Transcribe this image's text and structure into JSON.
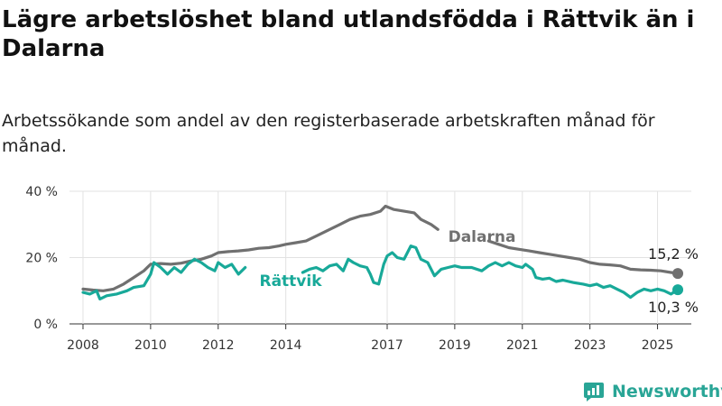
{
  "header": {
    "title": "Lägre arbetslöshet bland utlandsfödda i Rättvik än i Dalarna",
    "subtitle": "Arbetssökande som andel av den registerbaserade arbetskraften månad för månad."
  },
  "brand": {
    "name": "Newsworthy",
    "icon": "newsworthy-logo-icon",
    "color": "#29a596"
  },
  "chart_data": {
    "type": "line",
    "title": "Lägre arbetslöshet bland utlandsfödda i Rättvik än i Dalarna",
    "subtitle": "Arbetssökande som andel av den registerbaserade arbetskraften månad för månad.",
    "xlabel": "",
    "ylabel": "",
    "x_ticks": [
      "2008",
      "2010",
      "2012",
      "2014",
      "2017",
      "2019",
      "2021",
      "2023",
      "2025"
    ],
    "y_ticks": [
      "0 %",
      "20 %",
      "40 %"
    ],
    "xlim": [
      2007.6,
      2026.0
    ],
    "ylim": [
      0,
      40
    ],
    "grid": "horizontal",
    "series": [
      {
        "name": "Dalarna",
        "color": "#707070",
        "end_label": "15,2 %",
        "end_value": 15.2,
        "points": [
          [
            2008.0,
            10.5
          ],
          [
            2008.3,
            10.2
          ],
          [
            2008.6,
            10.0
          ],
          [
            2008.9,
            10.5
          ],
          [
            2009.2,
            12.0
          ],
          [
            2009.5,
            14.0
          ],
          [
            2009.8,
            16.0
          ],
          [
            2010.0,
            18.0
          ],
          [
            2010.3,
            18.2
          ],
          [
            2010.6,
            18.0
          ],
          [
            2010.9,
            18.3
          ],
          [
            2011.2,
            19.0
          ],
          [
            2011.5,
            19.5
          ],
          [
            2011.8,
            20.5
          ],
          [
            2012.0,
            21.5
          ],
          [
            2012.3,
            21.8
          ],
          [
            2012.6,
            22.0
          ],
          [
            2012.9,
            22.3
          ],
          [
            2013.2,
            22.8
          ],
          [
            2013.5,
            23.0
          ],
          [
            2013.8,
            23.5
          ],
          [
            2014.0,
            24.0
          ],
          [
            2014.3,
            24.5
          ],
          [
            2014.6,
            25.0
          ],
          [
            2015.0,
            27.0
          ],
          [
            2015.3,
            28.5
          ],
          [
            2015.6,
            30.0
          ],
          [
            2015.9,
            31.5
          ],
          [
            2016.2,
            32.5
          ],
          [
            2016.5,
            33.0
          ],
          [
            2016.8,
            34.0
          ],
          [
            2016.95,
            35.5
          ],
          [
            2017.2,
            34.5
          ],
          [
            2017.5,
            34.0
          ],
          [
            2017.8,
            33.5
          ],
          [
            2018.0,
            31.5
          ],
          [
            2018.3,
            30.0
          ],
          [
            2018.5,
            28.5
          ],
          [
            2020.0,
            25.0
          ],
          [
            2020.3,
            24.0
          ],
          [
            2020.6,
            23.0
          ],
          [
            2020.9,
            22.5
          ],
          [
            2021.2,
            22.0
          ],
          [
            2021.5,
            21.5
          ],
          [
            2021.8,
            21.0
          ],
          [
            2022.1,
            20.5
          ],
          [
            2022.4,
            20.0
          ],
          [
            2022.7,
            19.5
          ],
          [
            2023.0,
            18.5
          ],
          [
            2023.3,
            18.0
          ],
          [
            2023.6,
            17.8
          ],
          [
            2023.9,
            17.5
          ],
          [
            2024.2,
            16.5
          ],
          [
            2024.5,
            16.3
          ],
          [
            2024.8,
            16.2
          ],
          [
            2025.1,
            16.0
          ],
          [
            2025.4,
            15.5
          ],
          [
            2025.6,
            15.2
          ]
        ]
      },
      {
        "name": "Rättvik",
        "color": "#18a999",
        "end_label": "10,3 %",
        "end_value": 10.3,
        "points": [
          [
            2008.0,
            9.5
          ],
          [
            2008.2,
            9.0
          ],
          [
            2008.4,
            10.0
          ],
          [
            2008.5,
            7.5
          ],
          [
            2008.7,
            8.5
          ],
          [
            2009.0,
            9.0
          ],
          [
            2009.3,
            10.0
          ],
          [
            2009.5,
            11.0
          ],
          [
            2009.8,
            11.5
          ],
          [
            2010.0,
            15.0
          ],
          [
            2010.1,
            18.5
          ],
          [
            2010.3,
            17.0
          ],
          [
            2010.5,
            15.0
          ],
          [
            2010.7,
            17.0
          ],
          [
            2010.9,
            15.5
          ],
          [
            2011.1,
            18.0
          ],
          [
            2011.3,
            19.5
          ],
          [
            2011.5,
            18.5
          ],
          [
            2011.7,
            17.0
          ],
          [
            2011.9,
            16.0
          ],
          [
            2012.0,
            18.5
          ],
          [
            2012.2,
            17.0
          ],
          [
            2012.4,
            18.0
          ],
          [
            2012.6,
            15.0
          ],
          [
            2012.8,
            17.0
          ],
          [
            2014.5,
            15.5
          ],
          [
            2014.7,
            16.5
          ],
          [
            2014.9,
            17.0
          ],
          [
            2015.1,
            16.0
          ],
          [
            2015.3,
            17.5
          ],
          [
            2015.5,
            18.0
          ],
          [
            2015.7,
            16.0
          ],
          [
            2015.85,
            19.5
          ],
          [
            2016.0,
            18.5
          ],
          [
            2016.2,
            17.5
          ],
          [
            2016.4,
            17.0
          ],
          [
            2016.5,
            15.0
          ],
          [
            2016.6,
            12.5
          ],
          [
            2016.75,
            12.0
          ],
          [
            2016.9,
            18.0
          ],
          [
            2017.0,
            20.5
          ],
          [
            2017.15,
            21.5
          ],
          [
            2017.3,
            20.0
          ],
          [
            2017.5,
            19.5
          ],
          [
            2017.7,
            23.5
          ],
          [
            2017.85,
            23.0
          ],
          [
            2018.0,
            19.5
          ],
          [
            2018.2,
            18.5
          ],
          [
            2018.4,
            14.5
          ],
          [
            2018.6,
            16.5
          ],
          [
            2018.8,
            17.0
          ],
          [
            2019.0,
            17.5
          ],
          [
            2019.2,
            17.0
          ],
          [
            2019.5,
            17.0
          ],
          [
            2019.8,
            16.0
          ],
          [
            2020.0,
            17.5
          ],
          [
            2020.2,
            18.5
          ],
          [
            2020.4,
            17.5
          ],
          [
            2020.6,
            18.5
          ],
          [
            2020.8,
            17.5
          ],
          [
            2021.0,
            17.0
          ],
          [
            2021.1,
            18.0
          ],
          [
            2021.3,
            16.5
          ],
          [
            2021.4,
            14.0
          ],
          [
            2021.6,
            13.5
          ],
          [
            2021.8,
            13.8
          ],
          [
            2022.0,
            12.8
          ],
          [
            2022.2,
            13.2
          ],
          [
            2022.5,
            12.5
          ],
          [
            2022.8,
            12.0
          ],
          [
            2023.0,
            11.5
          ],
          [
            2023.2,
            12.0
          ],
          [
            2023.4,
            11.0
          ],
          [
            2023.6,
            11.5
          ],
          [
            2023.8,
            10.5
          ],
          [
            2024.0,
            9.5
          ],
          [
            2024.2,
            8.0
          ],
          [
            2024.4,
            9.5
          ],
          [
            2024.6,
            10.5
          ],
          [
            2024.8,
            10.0
          ],
          [
            2025.0,
            10.5
          ],
          [
            2025.2,
            10.0
          ],
          [
            2025.4,
            9.0
          ],
          [
            2025.6,
            10.3
          ]
        ]
      }
    ]
  }
}
